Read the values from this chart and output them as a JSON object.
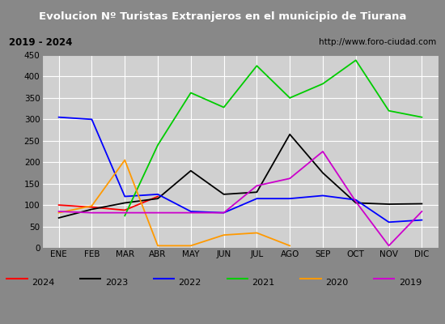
{
  "title": "Evolucion Nº Turistas Extranjeros en el municipio de Tiurana",
  "subtitle_left": "2019 - 2024",
  "subtitle_right": "http://www.foro-ciudad.com",
  "months": [
    "ENE",
    "FEB",
    "MAR",
    "ABR",
    "MAY",
    "JUN",
    "JUL",
    "AGO",
    "SEP",
    "OCT",
    "NOV",
    "DIC"
  ],
  "series": {
    "2024": [
      100,
      95,
      88,
      120,
      null,
      null,
      null,
      null,
      null,
      null,
      null,
      null
    ],
    "2023": [
      70,
      90,
      105,
      115,
      180,
      125,
      130,
      265,
      175,
      105,
      102,
      103
    ],
    "2022": [
      305,
      300,
      120,
      125,
      85,
      82,
      115,
      115,
      122,
      112,
      60,
      65
    ],
    "2021": [
      null,
      null,
      75,
      240,
      362,
      328,
      425,
      350,
      383,
      438,
      320,
      305
    ],
    "2020": [
      82,
      98,
      205,
      5,
      5,
      30,
      35,
      5,
      null,
      null,
      null,
      null
    ],
    "2019": [
      85,
      82,
      82,
      82,
      82,
      82,
      145,
      162,
      225,
      108,
      5,
      85
    ]
  },
  "colors": {
    "2024": "#ff0000",
    "2023": "#000000",
    "2022": "#0000ff",
    "2021": "#00cc00",
    "2020": "#ff9900",
    "2019": "#cc00cc"
  },
  "line_styles": {
    "2024": "-",
    "2023": "-",
    "2022": "-",
    "2021": "-",
    "2020": "-",
    "2019": "-"
  },
  "ylim": [
    0,
    450
  ],
  "yticks": [
    0,
    50,
    100,
    150,
    200,
    250,
    300,
    350,
    400,
    450
  ],
  "title_bg": "#4080c0",
  "title_color": "#ffffff",
  "subtitle_bg": "#e0e0e0",
  "plot_bg": "#d0d0d0",
  "grid_color": "#ffffff",
  "legend_bg": "#f0f0f0",
  "outer_border_color": "#888888"
}
